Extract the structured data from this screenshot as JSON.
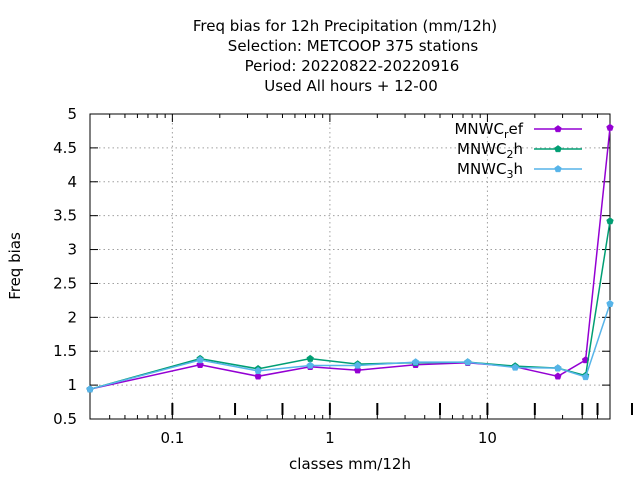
{
  "chart_data": {
    "type": "line",
    "title_lines": [
      "Freq bias  for 12h Precipitation (mm/12h)",
      "Selection: METCOOP    375 stations",
      "Period: 20220822-20220916",
      "Used  All hours  + 12-00"
    ],
    "xlabel": "classes mm/12h",
    "ylabel": "Freq bias",
    "xscale": "log",
    "xlim": [
      0.03,
      60
    ],
    "ylim": [
      0.5,
      5
    ],
    "x_ticks": [
      0.1,
      1,
      10
    ],
    "x_tick_labels": [
      "0.1",
      "1",
      "10"
    ],
    "y_ticks": [
      0.5,
      1,
      1.5,
      2,
      2.5,
      3,
      3.5,
      4,
      4.5,
      5
    ],
    "y_tick_labels": [
      "0.5",
      "1",
      "1.5",
      "2",
      "2.5",
      "3",
      "3.5",
      "4",
      "4.5",
      "5"
    ],
    "grid": true,
    "legend_position": "top-right",
    "x": [
      0.03,
      0.15,
      0.35,
      0.75,
      1.5,
      3.5,
      7.5,
      15,
      28,
      42,
      60
    ],
    "class_markers": [
      0.1,
      0.25,
      0.5,
      1,
      2,
      5,
      10,
      20,
      40,
      50,
      100
    ],
    "series": [
      {
        "name": "MNWC_ref",
        "legend_main": "MNWC",
        "legend_sub": "r",
        "legend_tail": "ef",
        "color": "#9400d3",
        "marker": "pentagon",
        "values": [
          0.94,
          1.3,
          1.13,
          1.27,
          1.22,
          1.3,
          1.33,
          1.27,
          1.13,
          1.37,
          4.8
        ]
      },
      {
        "name": "MNWC_2h",
        "legend_main": "MNWC",
        "legend_sub": "2",
        "legend_tail": "h",
        "color": "#009e73",
        "marker": "pentagon",
        "values": [
          0.94,
          1.39,
          1.24,
          1.39,
          1.31,
          1.33,
          1.34,
          1.28,
          1.25,
          1.14,
          3.42
        ]
      },
      {
        "name": "MNWC_3h",
        "legend_main": "MNWC",
        "legend_sub": "3",
        "legend_tail": "h",
        "color": "#56b4e9",
        "marker": "pentagon",
        "values": [
          0.94,
          1.37,
          1.21,
          1.29,
          1.29,
          1.34,
          1.34,
          1.26,
          1.25,
          1.12,
          2.2
        ]
      }
    ]
  }
}
